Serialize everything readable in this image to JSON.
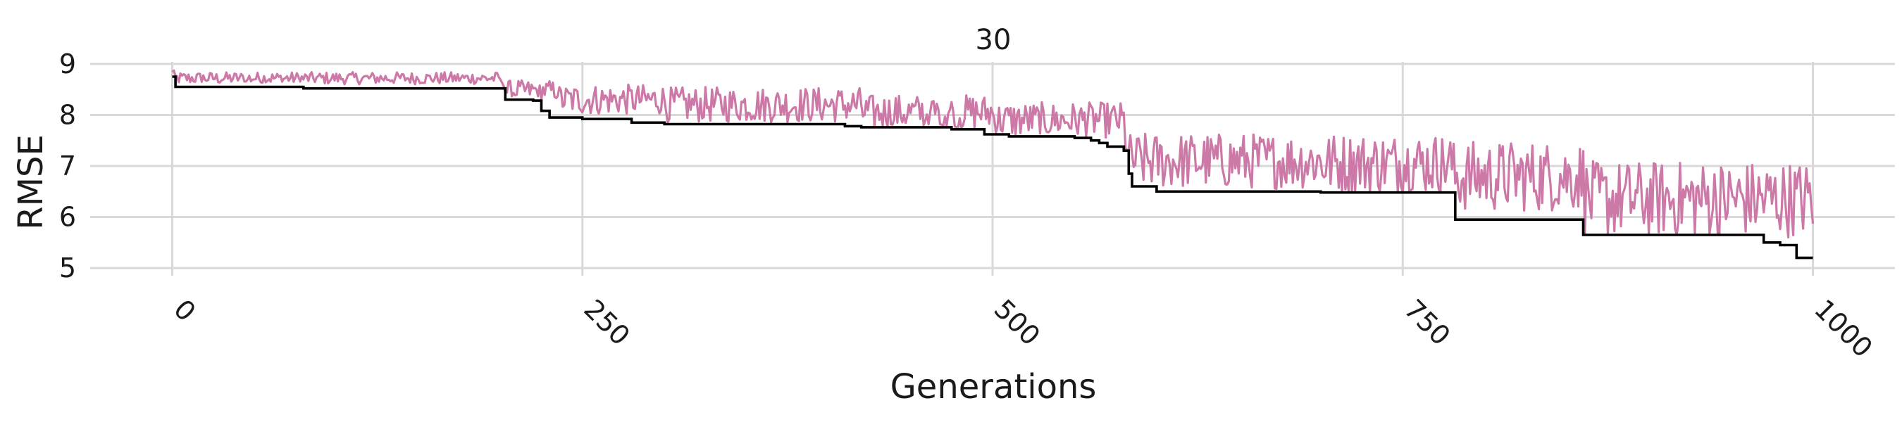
{
  "chart_data": {
    "type": "line",
    "title": "30",
    "xlabel": "Generations",
    "ylabel": "RMSE",
    "xlim": [
      -50,
      1050
    ],
    "ylim": [
      4.85,
      9.15
    ],
    "xticks": [
      0,
      250,
      500,
      750,
      1000
    ],
    "xtick_labels": [
      "0",
      "250",
      "500",
      "750",
      "1000"
    ],
    "yticks": [
      5,
      6,
      7,
      8,
      9
    ],
    "ytick_labels": [
      "5",
      "6",
      "7",
      "8",
      "9"
    ],
    "grid": true,
    "colors": {
      "current": "#cc79a7",
      "best": "#000000"
    },
    "series": [
      {
        "role": "best",
        "x": [
          0,
          2,
          80,
          200,
          203,
          220,
          225,
          230,
          250,
          280,
          300,
          410,
          420,
          450,
          475,
          480,
          495,
          510,
          550,
          560,
          565,
          570,
          580,
          583,
          585,
          600,
          700,
          780,
          782,
          850,
          860,
          900,
          955,
          970,
          980,
          990,
          1000
        ],
        "y": [
          8.75,
          8.55,
          8.52,
          8.52,
          8.3,
          8.28,
          8.08,
          7.95,
          7.92,
          7.85,
          7.82,
          7.78,
          7.76,
          7.76,
          7.72,
          7.72,
          7.62,
          7.58,
          7.55,
          7.5,
          7.45,
          7.38,
          7.3,
          6.85,
          6.6,
          6.5,
          6.48,
          6.48,
          5.95,
          5.95,
          5.65,
          5.65,
          5.65,
          5.5,
          5.45,
          5.2,
          5.2
        ]
      },
      {
        "role": "current",
        "segments": [
          {
            "x_start": 0,
            "x_end": 200,
            "center": 8.72,
            "amplitude": 0.12,
            "floor_offset": 0.08
          },
          {
            "x_start": 200,
            "x_end": 235,
            "center": 8.48,
            "amplitude": 0.2,
            "floor_offset": 0.05
          },
          {
            "x_start": 235,
            "x_end": 300,
            "center": 8.3,
            "amplitude": 0.3,
            "floor_offset": 0.02
          },
          {
            "x_start": 300,
            "x_end": 420,
            "center": 8.2,
            "amplitude": 0.35,
            "floor_offset": 0.02
          },
          {
            "x_start": 420,
            "x_end": 500,
            "center": 8.05,
            "amplitude": 0.35,
            "floor_offset": 0.02
          },
          {
            "x_start": 500,
            "x_end": 580,
            "center": 7.9,
            "amplitude": 0.35,
            "floor_offset": 0.02
          },
          {
            "x_start": 580,
            "x_end": 700,
            "center": 7.1,
            "amplitude": 0.55,
            "floor_offset": 0.0
          },
          {
            "x_start": 700,
            "x_end": 780,
            "center": 7.05,
            "amplitude": 0.6,
            "floor_offset": 0.0
          },
          {
            "x_start": 780,
            "x_end": 860,
            "center": 6.8,
            "amplitude": 0.7,
            "floor_offset": 0.0
          },
          {
            "x_start": 860,
            "x_end": 1000,
            "center": 6.35,
            "amplitude": 0.75,
            "floor_offset": 0.0
          }
        ],
        "max_value": 8.9
      }
    ]
  }
}
